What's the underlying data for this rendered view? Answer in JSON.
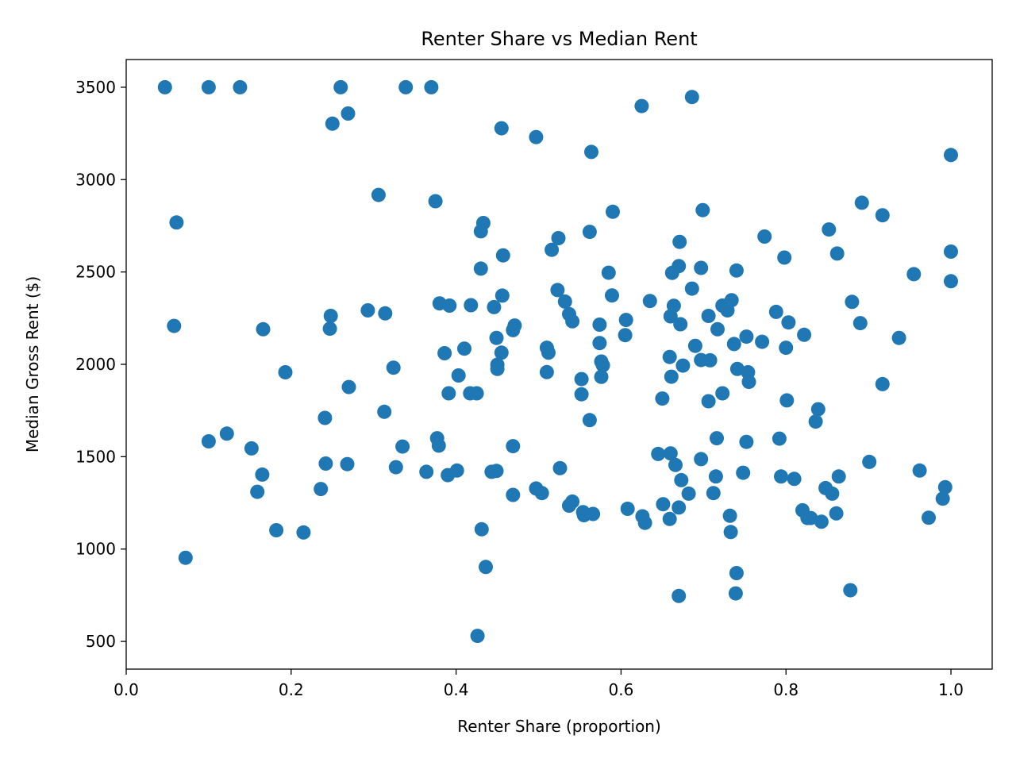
{
  "chart_data": {
    "type": "scatter",
    "title": "Renter Share vs Median Rent",
    "xlabel": "Renter Share (proportion)",
    "ylabel": "Median Gross Rent ($)",
    "xlim": [
      0.0,
      1.05
    ],
    "ylim": [
      350,
      3650
    ],
    "xticks": [
      0.0,
      0.2,
      0.4,
      0.6,
      0.8,
      1.0
    ],
    "xtick_labels": [
      "0.0",
      "0.2",
      "0.4",
      "0.6",
      "0.8",
      "1.0"
    ],
    "yticks": [
      500,
      1000,
      1500,
      2000,
      2500,
      3000,
      3500
    ],
    "ytick_labels": [
      "500",
      "1000",
      "1500",
      "2000",
      "2500",
      "3000",
      "3500"
    ],
    "grid": false,
    "marker_color": "#1f77b4",
    "points": [
      [
        0.047,
        3500
      ],
      [
        0.1,
        3500
      ],
      [
        0.138,
        3500
      ],
      [
        0.26,
        3500
      ],
      [
        0.339,
        3500
      ],
      [
        0.37,
        3500
      ],
      [
        0.25,
        3303
      ],
      [
        0.269,
        3358
      ],
      [
        0.455,
        3278
      ],
      [
        0.497,
        3230
      ],
      [
        0.564,
        3150
      ],
      [
        0.625,
        3398
      ],
      [
        0.686,
        3447
      ],
      [
        1.0,
        3133
      ],
      [
        0.306,
        2917
      ],
      [
        0.375,
        2883
      ],
      [
        0.061,
        2768
      ],
      [
        0.433,
        2765
      ],
      [
        0.43,
        2720
      ],
      [
        0.59,
        2826
      ],
      [
        0.699,
        2835
      ],
      [
        0.892,
        2875
      ],
      [
        0.917,
        2807
      ],
      [
        0.516,
        2620
      ],
      [
        0.524,
        2683
      ],
      [
        0.562,
        2717
      ],
      [
        0.671,
        2663
      ],
      [
        0.774,
        2692
      ],
      [
        0.852,
        2730
      ],
      [
        0.862,
        2600
      ],
      [
        1.0,
        2610
      ],
      [
        0.43,
        2518
      ],
      [
        0.457,
        2590
      ],
      [
        0.585,
        2496
      ],
      [
        0.662,
        2495
      ],
      [
        0.67,
        2532
      ],
      [
        0.697,
        2522
      ],
      [
        0.74,
        2508
      ],
      [
        0.798,
        2578
      ],
      [
        0.955,
        2488
      ],
      [
        1.0,
        2450
      ],
      [
        0.058,
        2208
      ],
      [
        0.166,
        2190
      ],
      [
        0.248,
        2262
      ],
      [
        0.247,
        2193
      ],
      [
        0.293,
        2292
      ],
      [
        0.314,
        2276
      ],
      [
        0.38,
        2330
      ],
      [
        0.392,
        2318
      ],
      [
        0.418,
        2320
      ],
      [
        0.446,
        2310
      ],
      [
        0.456,
        2372
      ],
      [
        0.523,
        2402
      ],
      [
        0.532,
        2340
      ],
      [
        0.537,
        2272
      ],
      [
        0.541,
        2233
      ],
      [
        0.589,
        2373
      ],
      [
        0.635,
        2343
      ],
      [
        0.664,
        2317
      ],
      [
        0.66,
        2260
      ],
      [
        0.672,
        2217
      ],
      [
        0.686,
        2410
      ],
      [
        0.706,
        2262
      ],
      [
        0.717,
        2190
      ],
      [
        0.723,
        2318
      ],
      [
        0.729,
        2292
      ],
      [
        0.734,
        2347
      ],
      [
        0.737,
        2110
      ],
      [
        0.752,
        2150
      ],
      [
        0.771,
        2122
      ],
      [
        0.788,
        2284
      ],
      [
        0.803,
        2227
      ],
      [
        0.822,
        2160
      ],
      [
        0.88,
        2338
      ],
      [
        0.89,
        2223
      ],
      [
        0.937,
        2143
      ],
      [
        0.449,
        2143
      ],
      [
        0.471,
        2210
      ],
      [
        0.469,
        2185
      ],
      [
        0.386,
        2060
      ],
      [
        0.41,
        2085
      ],
      [
        0.455,
        2063
      ],
      [
        0.45,
        1998
      ],
      [
        0.45,
        1975
      ],
      [
        0.403,
        1940
      ],
      [
        0.391,
        1843
      ],
      [
        0.417,
        1843
      ],
      [
        0.425,
        1843
      ],
      [
        0.51,
        2090
      ],
      [
        0.512,
        2063
      ],
      [
        0.51,
        1958
      ],
      [
        0.552,
        1920
      ],
      [
        0.552,
        1838
      ],
      [
        0.574,
        2215
      ],
      [
        0.574,
        2115
      ],
      [
        0.576,
        2015
      ],
      [
        0.578,
        1995
      ],
      [
        0.576,
        1932
      ],
      [
        0.606,
        2240
      ],
      [
        0.605,
        2158
      ],
      [
        0.659,
        2040
      ],
      [
        0.661,
        1933
      ],
      [
        0.675,
        1993
      ],
      [
        0.69,
        2100
      ],
      [
        0.697,
        2023
      ],
      [
        0.708,
        2022
      ],
      [
        0.706,
        1800
      ],
      [
        0.723,
        1843
      ],
      [
        0.741,
        1975
      ],
      [
        0.754,
        1957
      ],
      [
        0.755,
        1905
      ],
      [
        0.65,
        1815
      ],
      [
        0.8,
        2090
      ],
      [
        0.801,
        1805
      ],
      [
        0.839,
        1757
      ],
      [
        0.836,
        1690
      ],
      [
        0.917,
        1893
      ],
      [
        0.193,
        1957
      ],
      [
        0.324,
        1982
      ],
      [
        0.27,
        1877
      ],
      [
        0.313,
        1743
      ],
      [
        0.241,
        1710
      ],
      [
        0.1,
        1583
      ],
      [
        0.122,
        1625
      ],
      [
        0.152,
        1545
      ],
      [
        0.165,
        1403
      ],
      [
        0.159,
        1310
      ],
      [
        0.182,
        1102
      ],
      [
        0.215,
        1090
      ],
      [
        0.072,
        953
      ],
      [
        0.236,
        1325
      ],
      [
        0.242,
        1463
      ],
      [
        0.268,
        1460
      ],
      [
        0.327,
        1443
      ],
      [
        0.335,
        1555
      ],
      [
        0.364,
        1418
      ],
      [
        0.377,
        1600
      ],
      [
        0.379,
        1560
      ],
      [
        0.39,
        1400
      ],
      [
        0.401,
        1425
      ],
      [
        0.443,
        1418
      ],
      [
        0.449,
        1423
      ],
      [
        0.469,
        1557
      ],
      [
        0.469,
        1293
      ],
      [
        0.497,
        1328
      ],
      [
        0.504,
        1303
      ],
      [
        0.526,
        1438
      ],
      [
        0.537,
        1235
      ],
      [
        0.541,
        1257
      ],
      [
        0.554,
        1200
      ],
      [
        0.555,
        1183
      ],
      [
        0.566,
        1190
      ],
      [
        0.562,
        1698
      ],
      [
        0.431,
        1107
      ],
      [
        0.436,
        903
      ],
      [
        0.426,
        530
      ],
      [
        0.608,
        1218
      ],
      [
        0.626,
        1177
      ],
      [
        0.629,
        1142
      ],
      [
        0.645,
        1515
      ],
      [
        0.66,
        1518
      ],
      [
        0.666,
        1455
      ],
      [
        0.651,
        1243
      ],
      [
        0.659,
        1163
      ],
      [
        0.67,
        1225
      ],
      [
        0.673,
        1373
      ],
      [
        0.682,
        1300
      ],
      [
        0.697,
        1487
      ],
      [
        0.712,
        1303
      ],
      [
        0.715,
        1393
      ],
      [
        0.716,
        1600
      ],
      [
        0.732,
        1180
      ],
      [
        0.733,
        1092
      ],
      [
        0.74,
        870
      ],
      [
        0.739,
        760
      ],
      [
        0.748,
        1413
      ],
      [
        0.752,
        1580
      ],
      [
        0.67,
        746
      ],
      [
        0.792,
        1598
      ],
      [
        0.794,
        1393
      ],
      [
        0.81,
        1380
      ],
      [
        0.82,
        1210
      ],
      [
        0.826,
        1168
      ],
      [
        0.83,
        1168
      ],
      [
        0.843,
        1148
      ],
      [
        0.848,
        1330
      ],
      [
        0.856,
        1300
      ],
      [
        0.861,
        1193
      ],
      [
        0.864,
        1393
      ],
      [
        0.878,
        777
      ],
      [
        0.901,
        1472
      ],
      [
        0.962,
        1425
      ],
      [
        0.973,
        1170
      ],
      [
        0.99,
        1273
      ],
      [
        0.993,
        1335
      ]
    ]
  }
}
